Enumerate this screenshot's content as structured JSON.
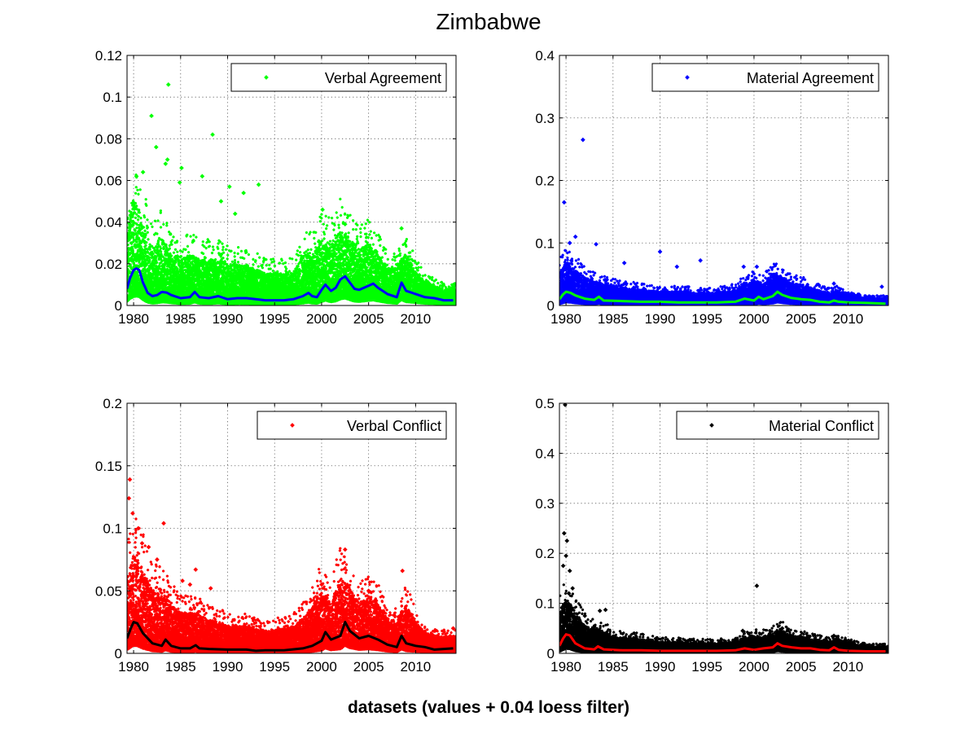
{
  "figure": {
    "title": "Zimbabwe",
    "caption": "datasets (values + 0.04 loess filter)"
  },
  "chart_data": [
    {
      "type": "scatter",
      "legend": "Verbal Agreement",
      "legend_position": "top-right",
      "grid": true,
      "xlim": [
        1979.3,
        2014.3
      ],
      "ylim": [
        0,
        0.12
      ],
      "xticks": [
        1980,
        1985,
        1990,
        1995,
        2000,
        2005,
        2010
      ],
      "yticks": [
        0,
        0.02,
        0.04,
        0.06,
        0.08,
        0.1,
        0.12
      ],
      "ytick_labels": [
        "0",
        "0.02",
        "0.04",
        "0.06",
        "0.08",
        "0.1",
        "0.12"
      ],
      "marker_color": "#00ff00",
      "trend_color": "#0000ff",
      "trend": {
        "x": [
          1979.3,
          1979.6,
          1980.0,
          1980.3,
          1980.6,
          1981.0,
          1981.5,
          1982.0,
          1982.5,
          1983.0,
          1983.5,
          1984.0,
          1985.0,
          1986.0,
          1986.5,
          1987.0,
          1988.0,
          1989.0,
          1990.0,
          1991.0,
          1992.0,
          1993.0,
          1994.0,
          1995.0,
          1996.0,
          1997.0,
          1998.0,
          1998.6,
          1999.0,
          1999.5,
          2000.0,
          2000.4,
          2001.0,
          2001.5,
          2002.0,
          2002.5,
          2003.0,
          2003.5,
          2004.0,
          2005.0,
          2005.5,
          2006.0,
          2007.0,
          2008.0,
          2008.5,
          2009.0,
          2010.0,
          2011.0,
          2012.0,
          2013.0,
          2014.0
        ],
        "y": [
          0.008,
          0.013,
          0.017,
          0.0178,
          0.017,
          0.011,
          0.006,
          0.0045,
          0.005,
          0.0065,
          0.0062,
          0.005,
          0.0035,
          0.004,
          0.0065,
          0.004,
          0.0035,
          0.0045,
          0.003,
          0.0035,
          0.0035,
          0.003,
          0.0025,
          0.0025,
          0.0025,
          0.003,
          0.0045,
          0.006,
          0.0045,
          0.004,
          0.0075,
          0.01,
          0.007,
          0.0085,
          0.0125,
          0.014,
          0.011,
          0.008,
          0.0075,
          0.0095,
          0.0105,
          0.0085,
          0.0055,
          0.004,
          0.011,
          0.007,
          0.0055,
          0.004,
          0.0035,
          0.0025,
          0.0025
        ]
      },
      "outliers": {
        "x": [
          1983.7,
          1981.9,
          1982.4,
          1988.4,
          1983.6,
          1983.4,
          1985.1,
          1987.3,
          1981.0,
          1980.3,
          1990.2,
          1991.7,
          1989.3,
          1993.3,
          1984.9,
          1990.8,
          2000.1,
          2002.5,
          2008.5
        ],
        "y": [
          0.106,
          0.091,
          0.076,
          0.082,
          0.07,
          0.068,
          0.066,
          0.062,
          0.064,
          0.062,
          0.057,
          0.054,
          0.05,
          0.058,
          0.059,
          0.044,
          0.046,
          0.039,
          0.037
        ]
      },
      "spread": {
        "x": [
          1979.3,
          1980.0,
          1981.0,
          1982.0,
          1983.0,
          1984.0,
          1985.0,
          1986.0,
          1987.0,
          1988.0,
          1989.0,
          1990.0,
          1991.0,
          1992.0,
          1993.0,
          1994.0,
          1995.0,
          1996.0,
          1997.0,
          1998.0,
          1999.0,
          2000.0,
          2001.0,
          2002.0,
          2003.0,
          2004.0,
          2005.0,
          2006.0,
          2007.0,
          2008.0,
          2009.0,
          2010.0,
          2011.0,
          2012.0,
          2013.0,
          2014.0
        ],
        "y": [
          0.03,
          0.045,
          0.035,
          0.025,
          0.03,
          0.022,
          0.02,
          0.022,
          0.02,
          0.02,
          0.02,
          0.018,
          0.018,
          0.017,
          0.016,
          0.014,
          0.014,
          0.014,
          0.015,
          0.022,
          0.022,
          0.028,
          0.026,
          0.032,
          0.028,
          0.024,
          0.026,
          0.022,
          0.016,
          0.016,
          0.022,
          0.014,
          0.01,
          0.008,
          0.007,
          0.007
        ]
      }
    },
    {
      "type": "scatter",
      "legend": "Material Agreement",
      "legend_position": "top-right",
      "grid": true,
      "xlim": [
        1979.3,
        2014.3
      ],
      "ylim": [
        0,
        0.4
      ],
      "xticks": [
        1980,
        1985,
        1990,
        1995,
        2000,
        2005,
        2010
      ],
      "yticks": [
        0,
        0.1,
        0.2,
        0.3,
        0.4
      ],
      "ytick_labels": [
        "0",
        "0.1",
        "0.2",
        "0.3",
        "0.4"
      ],
      "marker_color": "#0000ff",
      "trend_color": "#00ff00",
      "trend": {
        "x": [
          1979.3,
          1979.7,
          1980.0,
          1980.5,
          1981.0,
          1982.0,
          1983.0,
          1983.5,
          1984.0,
          1986.0,
          1988.0,
          1990.0,
          1992.0,
          1994.0,
          1996.0,
          1998.0,
          1999.0,
          2000.0,
          2000.5,
          2001.0,
          2002.0,
          2002.5,
          2003.0,
          2004.0,
          2005.0,
          2006.0,
          2007.0,
          2008.0,
          2008.5,
          2009.0,
          2010.0,
          2012.0,
          2014.0
        ],
        "y": [
          0.01,
          0.018,
          0.022,
          0.02,
          0.016,
          0.011,
          0.009,
          0.014,
          0.008,
          0.007,
          0.006,
          0.006,
          0.005,
          0.005,
          0.005,
          0.006,
          0.011,
          0.008,
          0.014,
          0.01,
          0.015,
          0.022,
          0.017,
          0.012,
          0.01,
          0.009,
          0.006,
          0.005,
          0.008,
          0.006,
          0.005,
          0.004,
          0.003
        ]
      },
      "outliers": {
        "x": [
          1981.8,
          1979.8,
          1981.0,
          1980.4,
          1983.2,
          1990.0,
          1994.3,
          1986.2,
          1991.8,
          1998.9,
          2000.3,
          2013.6,
          2008.5
        ],
        "y": [
          0.265,
          0.165,
          0.11,
          0.1,
          0.098,
          0.086,
          0.072,
          0.068,
          0.062,
          0.062,
          0.062,
          0.03,
          0.035
        ]
      },
      "spread": {
        "x": [
          1979.3,
          1980.0,
          1981.0,
          1982.0,
          1983.0,
          1984.0,
          1986.0,
          1988.0,
          1990.0,
          1992.0,
          1994.0,
          1996.0,
          1998.0,
          1999.0,
          2000.0,
          2001.0,
          2002.0,
          2003.0,
          2004.0,
          2005.0,
          2006.0,
          2008.0,
          2009.0,
          2010.0,
          2012.0,
          2014.0
        ],
        "y": [
          0.045,
          0.06,
          0.05,
          0.04,
          0.035,
          0.03,
          0.025,
          0.022,
          0.02,
          0.02,
          0.018,
          0.018,
          0.022,
          0.03,
          0.035,
          0.03,
          0.045,
          0.04,
          0.03,
          0.03,
          0.025,
          0.018,
          0.02,
          0.014,
          0.01,
          0.01
        ]
      }
    },
    {
      "type": "scatter",
      "legend": "Verbal Conflict",
      "legend_position": "top-right",
      "grid": true,
      "xlim": [
        1979.3,
        2014.3
      ],
      "ylim": [
        0,
        0.2
      ],
      "xticks": [
        1980,
        1985,
        1990,
        1995,
        2000,
        2005,
        2010
      ],
      "yticks": [
        0,
        0.05,
        0.1,
        0.15,
        0.2
      ],
      "ytick_labels": [
        "0",
        "0.05",
        "0.1",
        "0.15",
        "0.2"
      ],
      "marker_color": "#ff0000",
      "trend_color": "#000000",
      "trend": {
        "x": [
          1979.3,
          1979.7,
          1980.0,
          1980.4,
          1981.0,
          1982.0,
          1983.0,
          1983.4,
          1984.0,
          1985.0,
          1986.0,
          1986.6,
          1987.0,
          1988.0,
          1990.0,
          1992.0,
          1993.0,
          1994.0,
          1996.0,
          1998.0,
          1999.0,
          2000.0,
          2000.4,
          2001.0,
          2002.0,
          2002.5,
          2003.0,
          2004.0,
          2005.0,
          2006.0,
          2007.0,
          2008.0,
          2008.5,
          2009.0,
          2010.0,
          2011.0,
          2012.0,
          2013.0,
          2014.0
        ],
        "y": [
          0.012,
          0.02,
          0.025,
          0.024,
          0.016,
          0.008,
          0.006,
          0.011,
          0.006,
          0.004,
          0.004,
          0.0065,
          0.004,
          0.0035,
          0.003,
          0.003,
          0.002,
          0.0025,
          0.0025,
          0.004,
          0.006,
          0.01,
          0.017,
          0.011,
          0.014,
          0.025,
          0.018,
          0.012,
          0.014,
          0.011,
          0.007,
          0.005,
          0.014,
          0.008,
          0.006,
          0.005,
          0.003,
          0.0035,
          0.004
        ]
      },
      "outliers": {
        "x": [
          1979.6,
          1979.5,
          1979.9,
          1983.2,
          1980.5,
          1980.9,
          1981.6,
          1982.5,
          1986.6,
          1985.2,
          1986.0,
          1988.2,
          2002.5,
          2008.6,
          2000.0,
          2005.0,
          2014.0
        ],
        "y": [
          0.139,
          0.124,
          0.112,
          0.104,
          0.1,
          0.088,
          0.085,
          0.075,
          0.067,
          0.058,
          0.055,
          0.052,
          0.083,
          0.066,
          0.055,
          0.05,
          0.02
        ]
      },
      "spread": {
        "x": [
          1979.3,
          1980.0,
          1981.0,
          1982.0,
          1983.0,
          1984.0,
          1985.0,
          1986.0,
          1987.0,
          1988.0,
          1989.0,
          1990.0,
          1991.0,
          1992.0,
          1993.0,
          1994.0,
          1995.0,
          1996.0,
          1997.0,
          1998.0,
          1999.0,
          2000.0,
          2001.0,
          2002.0,
          2003.0,
          2004.0,
          2005.0,
          2006.0,
          2007.0,
          2008.0,
          2009.0,
          2010.0,
          2011.0,
          2012.0,
          2013.0,
          2014.0
        ],
        "y": [
          0.055,
          0.07,
          0.06,
          0.045,
          0.045,
          0.035,
          0.03,
          0.03,
          0.028,
          0.025,
          0.023,
          0.02,
          0.02,
          0.02,
          0.018,
          0.017,
          0.018,
          0.018,
          0.02,
          0.025,
          0.035,
          0.045,
          0.035,
          0.055,
          0.045,
          0.035,
          0.04,
          0.035,
          0.025,
          0.022,
          0.035,
          0.022,
          0.015,
          0.012,
          0.012,
          0.012
        ]
      }
    },
    {
      "type": "scatter",
      "legend": "Material Conflict",
      "legend_position": "top-right",
      "grid": true,
      "xlim": [
        1979.3,
        2014.3
      ],
      "ylim": [
        0,
        0.5
      ],
      "xticks": [
        1980,
        1985,
        1990,
        1995,
        2000,
        2005,
        2010
      ],
      "yticks": [
        0,
        0.1,
        0.2,
        0.3,
        0.4,
        0.5
      ],
      "ytick_labels": [
        "0",
        "0.1",
        "0.2",
        "0.3",
        "0.4",
        "0.5"
      ],
      "marker_color": "#000000",
      "trend_color": "#ff0000",
      "trend": {
        "x": [
          1979.3,
          1979.7,
          1980.0,
          1980.4,
          1981.0,
          1982.0,
          1983.0,
          1983.4,
          1984.0,
          1986.0,
          1988.0,
          1990.0,
          1992.0,
          1994.0,
          1996.0,
          1998.0,
          1999.0,
          2000.0,
          2001.0,
          2002.0,
          2002.5,
          2003.0,
          2004.0,
          2005.0,
          2006.0,
          2007.0,
          2008.0,
          2008.5,
          2009.0,
          2010.0,
          2012.0,
          2014.0
        ],
        "y": [
          0.015,
          0.03,
          0.038,
          0.036,
          0.02,
          0.01,
          0.008,
          0.014,
          0.008,
          0.006,
          0.006,
          0.005,
          0.005,
          0.005,
          0.005,
          0.006,
          0.01,
          0.007,
          0.01,
          0.012,
          0.02,
          0.015,
          0.012,
          0.01,
          0.01,
          0.007,
          0.006,
          0.012,
          0.007,
          0.005,
          0.004,
          0.004
        ]
      },
      "outliers": {
        "x": [
          1979.9,
          1979.8,
          1980.1,
          1980.0,
          1979.7,
          1980.4,
          1980.7,
          1980.3,
          1983.6,
          1984.2,
          1982.0,
          2000.3,
          1998.8,
          2003.0,
          2008.5
        ],
        "y": [
          0.497,
          0.24,
          0.225,
          0.195,
          0.175,
          0.165,
          0.13,
          0.12,
          0.085,
          0.087,
          0.075,
          0.135,
          0.045,
          0.05,
          0.035
        ]
      },
      "spread": {
        "x": [
          1979.3,
          1980.0,
          1981.0,
          1982.0,
          1983.0,
          1984.0,
          1985.0,
          1986.0,
          1988.0,
          1990.0,
          1992.0,
          1994.0,
          1996.0,
          1998.0,
          1999.0,
          2000.0,
          2001.0,
          2002.0,
          2003.0,
          2004.0,
          2005.0,
          2006.0,
          2008.0,
          2009.0,
          2010.0,
          2012.0,
          2014.0
        ],
        "y": [
          0.07,
          0.1,
          0.07,
          0.05,
          0.045,
          0.04,
          0.03,
          0.028,
          0.025,
          0.02,
          0.02,
          0.018,
          0.018,
          0.02,
          0.028,
          0.03,
          0.03,
          0.035,
          0.04,
          0.03,
          0.03,
          0.025,
          0.02,
          0.025,
          0.018,
          0.012,
          0.012
        ]
      }
    }
  ]
}
